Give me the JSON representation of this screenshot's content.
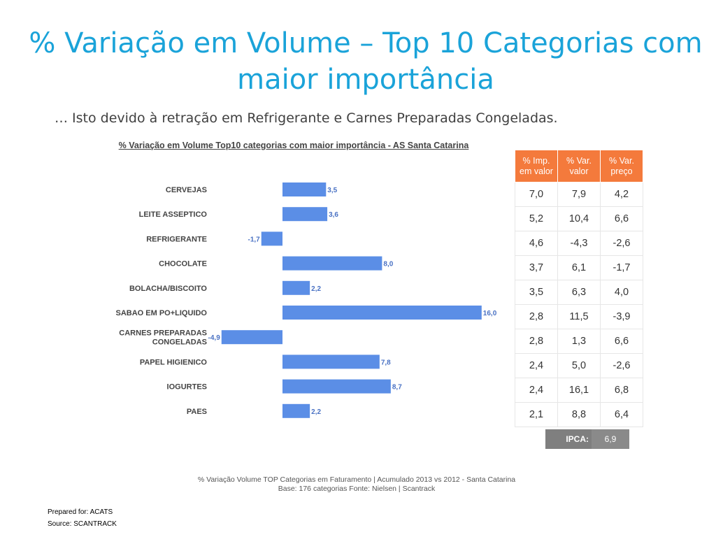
{
  "slide": {
    "title": "% Variação em Volume – Top 10 Categorias com maior importância",
    "subtitle": "… Isto devido à retração em Refrigerante e Carnes Preparadas Congeladas.",
    "chart_title": "% Variação em Volume Top10 categorias com maior importância - AS Santa Catarina",
    "footer_line1": "% Variação Volume TOP Categorias em Faturamento | Acumulado 2013 vs 2012 - Santa Catarina",
    "footer_line2": "Base: 176 categorias Fonte: Nielsen | Scantrack",
    "prepared_for": "Prepared for: ACATS",
    "source": "Source: SCANTRACK"
  },
  "chart_data": {
    "type": "bar",
    "orientation": "horizontal",
    "categories": [
      "CERVEJAS",
      "LEITE ASSEPTICO",
      "REFRIGERANTE",
      "CHOCOLATE",
      "BOLACHA/BISCOITO",
      "SABAO EM PO+LIQUIDO",
      "CARNES PREPARADAS CONGELADAS",
      "PAPEL HIGIENICO",
      "IOGURTES",
      "PAES"
    ],
    "category_lines": [
      [
        "CERVEJAS"
      ],
      [
        "LEITE ASSEPTICO"
      ],
      [
        "REFRIGERANTE"
      ],
      [
        "CHOCOLATE"
      ],
      [
        "BOLACHA/BISCOITO"
      ],
      [
        "SABAO EM PO+LIQUIDO"
      ],
      [
        "CARNES PREPARADAS",
        "CONGELADAS"
      ],
      [
        "PAPEL HIGIENICO"
      ],
      [
        "IOGURTES"
      ],
      [
        "PAES"
      ]
    ],
    "values": [
      3.5,
      3.6,
      -1.7,
      8.0,
      2.2,
      16.0,
      -4.9,
      7.8,
      8.7,
      2.2
    ],
    "value_labels": [
      "3,5",
      "3,6",
      "-1,7",
      "8,0",
      "2,2",
      "16,0",
      "-4,9",
      "7,8",
      "8,7",
      "2,2"
    ],
    "xlim": [
      -4.9,
      16.0
    ],
    "bar_color": "#5b8ee6",
    "grid": false
  },
  "table": {
    "header_color": "#f47a3c",
    "headers": [
      [
        "% Imp.",
        "em valor"
      ],
      [
        "% Var.",
        "valor"
      ],
      [
        "% Var.",
        "preço"
      ]
    ],
    "rows": [
      [
        "7,0",
        "7,9",
        "4,2"
      ],
      [
        "5,2",
        "10,4",
        "6,6"
      ],
      [
        "4,6",
        "-4,3",
        "-2,6"
      ],
      [
        "3,7",
        "6,1",
        "-1,7"
      ],
      [
        "3,5",
        "6,3",
        "4,0"
      ],
      [
        "2,8",
        "11,5",
        "-3,9"
      ],
      [
        "2,8",
        "1,3",
        "6,6"
      ],
      [
        "2,4",
        "5,0",
        "-2,6"
      ],
      [
        "2,4",
        "16,1",
        "6,8"
      ],
      [
        "2,1",
        "8,8",
        "6,4"
      ]
    ],
    "ipca_label": "IPCA:",
    "ipca_value": "6,9"
  }
}
